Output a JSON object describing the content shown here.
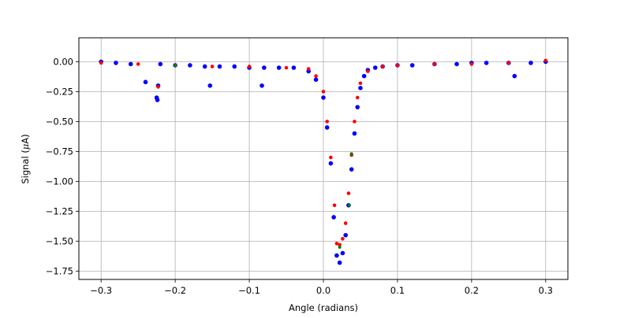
{
  "chart_data": {
    "type": "scatter",
    "title": "",
    "xlabel": "Angle (radians)",
    "ylabel_prefix": "Signal (",
    "ylabel_mu": "μ",
    "ylabel_suffix": "A)",
    "xlim": [
      -0.33,
      0.33
    ],
    "ylim": [
      -1.82,
      0.2
    ],
    "grid": true,
    "legend": "none",
    "x_ticks": [
      {
        "value": -0.3,
        "label": "−0.3"
      },
      {
        "value": -0.2,
        "label": "−0.2"
      },
      {
        "value": -0.1,
        "label": "−0.1"
      },
      {
        "value": 0.0,
        "label": "0.0"
      },
      {
        "value": 0.1,
        "label": "0.1"
      },
      {
        "value": 0.2,
        "label": "0.2"
      },
      {
        "value": 0.3,
        "label": "0.3"
      }
    ],
    "y_ticks": [
      {
        "value": 0.0,
        "label": "0.00"
      },
      {
        "value": -0.25,
        "label": "−0.25"
      },
      {
        "value": -0.5,
        "label": "−0.50"
      },
      {
        "value": -0.75,
        "label": "−0.75"
      },
      {
        "value": -1.0,
        "label": "−1.00"
      },
      {
        "value": -1.25,
        "label": "−1.25"
      },
      {
        "value": -1.5,
        "label": "−1.50"
      },
      {
        "value": -1.75,
        "label": "−1.75"
      }
    ],
    "series": [
      {
        "color": "#0000ff",
        "x": [
          -0.3,
          -0.28,
          -0.26,
          -0.24,
          -0.225,
          -0.224,
          -0.223,
          -0.22,
          -0.2,
          -0.18,
          -0.16,
          -0.153,
          -0.14,
          -0.12,
          -0.1,
          -0.083,
          -0.08,
          -0.06,
          -0.04,
          -0.02,
          -0.01,
          0.0,
          0.005,
          0.01,
          0.014,
          0.018,
          0.022,
          0.026,
          0.03,
          0.034,
          0.038,
          0.042,
          0.046,
          0.05,
          0.055,
          0.06,
          0.07,
          0.08,
          0.1,
          0.12,
          0.15,
          0.18,
          0.2,
          0.22,
          0.25,
          0.258,
          0.28,
          0.3
        ],
        "y": [
          0.0,
          -0.01,
          -0.02,
          -0.17,
          -0.3,
          -0.32,
          -0.2,
          -0.02,
          -0.03,
          -0.03,
          -0.04,
          -0.2,
          -0.04,
          -0.04,
          -0.05,
          -0.2,
          -0.05,
          -0.05,
          -0.05,
          -0.08,
          -0.15,
          -0.3,
          -0.55,
          -0.85,
          -1.3,
          -1.62,
          -1.68,
          -1.6,
          -1.45,
          -1.2,
          -0.9,
          -0.6,
          -0.38,
          -0.22,
          -0.12,
          -0.07,
          -0.05,
          -0.04,
          -0.03,
          -0.03,
          -0.02,
          -0.02,
          -0.01,
          -0.01,
          -0.01,
          -0.12,
          -0.01,
          0.0
        ]
      },
      {
        "color": "#ff0000",
        "x": [
          -0.3,
          -0.25,
          -0.223,
          -0.2,
          -0.15,
          -0.1,
          -0.05,
          -0.02,
          -0.01,
          0.0,
          0.005,
          0.01,
          0.015,
          0.018,
          0.022,
          0.026,
          0.03,
          0.034,
          0.038,
          0.042,
          0.046,
          0.05,
          0.06,
          0.08,
          0.1,
          0.15,
          0.2,
          0.25,
          0.3
        ],
        "y": [
          -0.01,
          -0.02,
          -0.21,
          -0.03,
          -0.04,
          -0.04,
          -0.05,
          -0.06,
          -0.12,
          -0.25,
          -0.5,
          -0.8,
          -1.2,
          -1.52,
          -1.53,
          -1.48,
          -1.35,
          -1.1,
          -0.78,
          -0.5,
          -0.3,
          -0.18,
          -0.08,
          -0.04,
          -0.03,
          -0.02,
          -0.02,
          -0.01,
          0.01
        ]
      },
      {
        "color": "#008000",
        "x": [
          -0.2,
          0.022,
          0.035,
          0.038
        ],
        "y": [
          -0.03,
          -1.55,
          -1.2,
          -0.77
        ]
      }
    ]
  }
}
